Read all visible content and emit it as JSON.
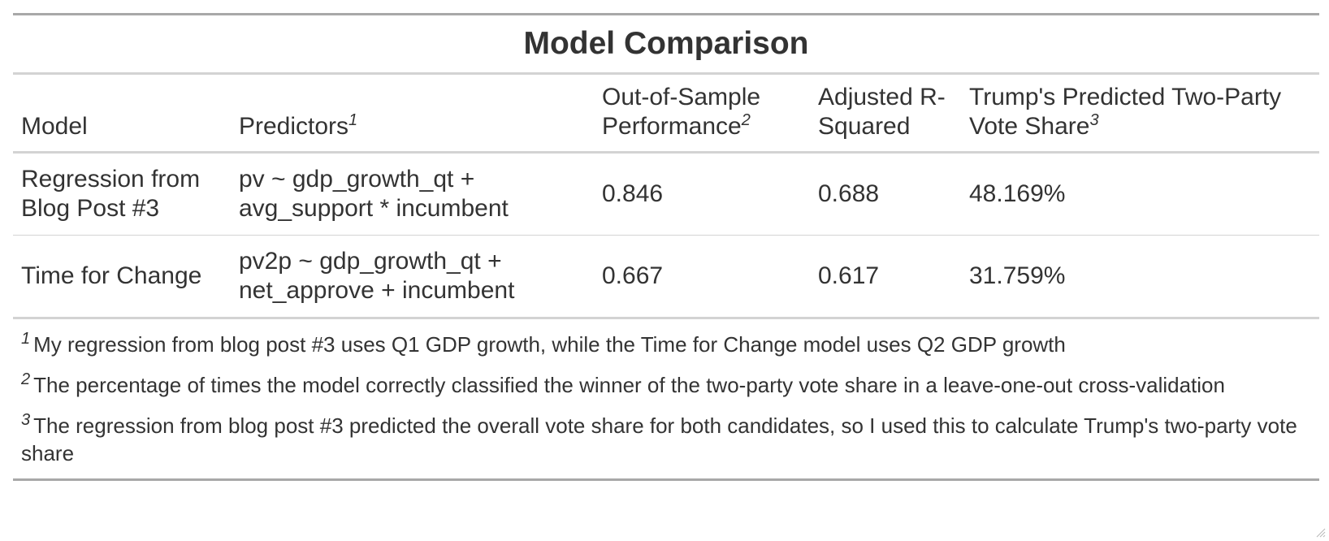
{
  "table": {
    "title": "Model Comparison",
    "columns": [
      {
        "label": "Model",
        "marker": ""
      },
      {
        "label": "Predictors",
        "marker": "1"
      },
      {
        "label": "Out-of-Sample Performance",
        "marker": "2"
      },
      {
        "label": "Adjusted R-Squared",
        "marker": ""
      },
      {
        "label": "Trump's Predicted Two-Party Vote Share",
        "marker": "3"
      }
    ],
    "rows": [
      {
        "model": "Regression from Blog Post #3",
        "predictors": "pv ~ gdp_growth_qt + avg_support * incumbent",
        "oos": "0.846",
        "adj_r2": "0.688",
        "vote_share": "48.169%"
      },
      {
        "model": "Time for Change",
        "predictors": "pv2p ~ gdp_growth_qt + net_approve + incumbent",
        "oos": "0.667",
        "adj_r2": "0.617",
        "vote_share": "31.759%"
      }
    ],
    "footnotes": [
      {
        "marker": "1",
        "text": "My regression from blog post #3 uses Q1 GDP growth, while the Time for Change model uses Q2 GDP growth"
      },
      {
        "marker": "2",
        "text": "The percentage of times the model correctly classified the winner of the two-party vote share in a leave-one-out cross-validation"
      },
      {
        "marker": "3",
        "text": "The regression from blog post #3 predicted the overall vote share for both candidates, so I used this to calculate Trump's two-party vote share"
      }
    ]
  },
  "icons": {
    "resize": "resize-grip-icon"
  }
}
